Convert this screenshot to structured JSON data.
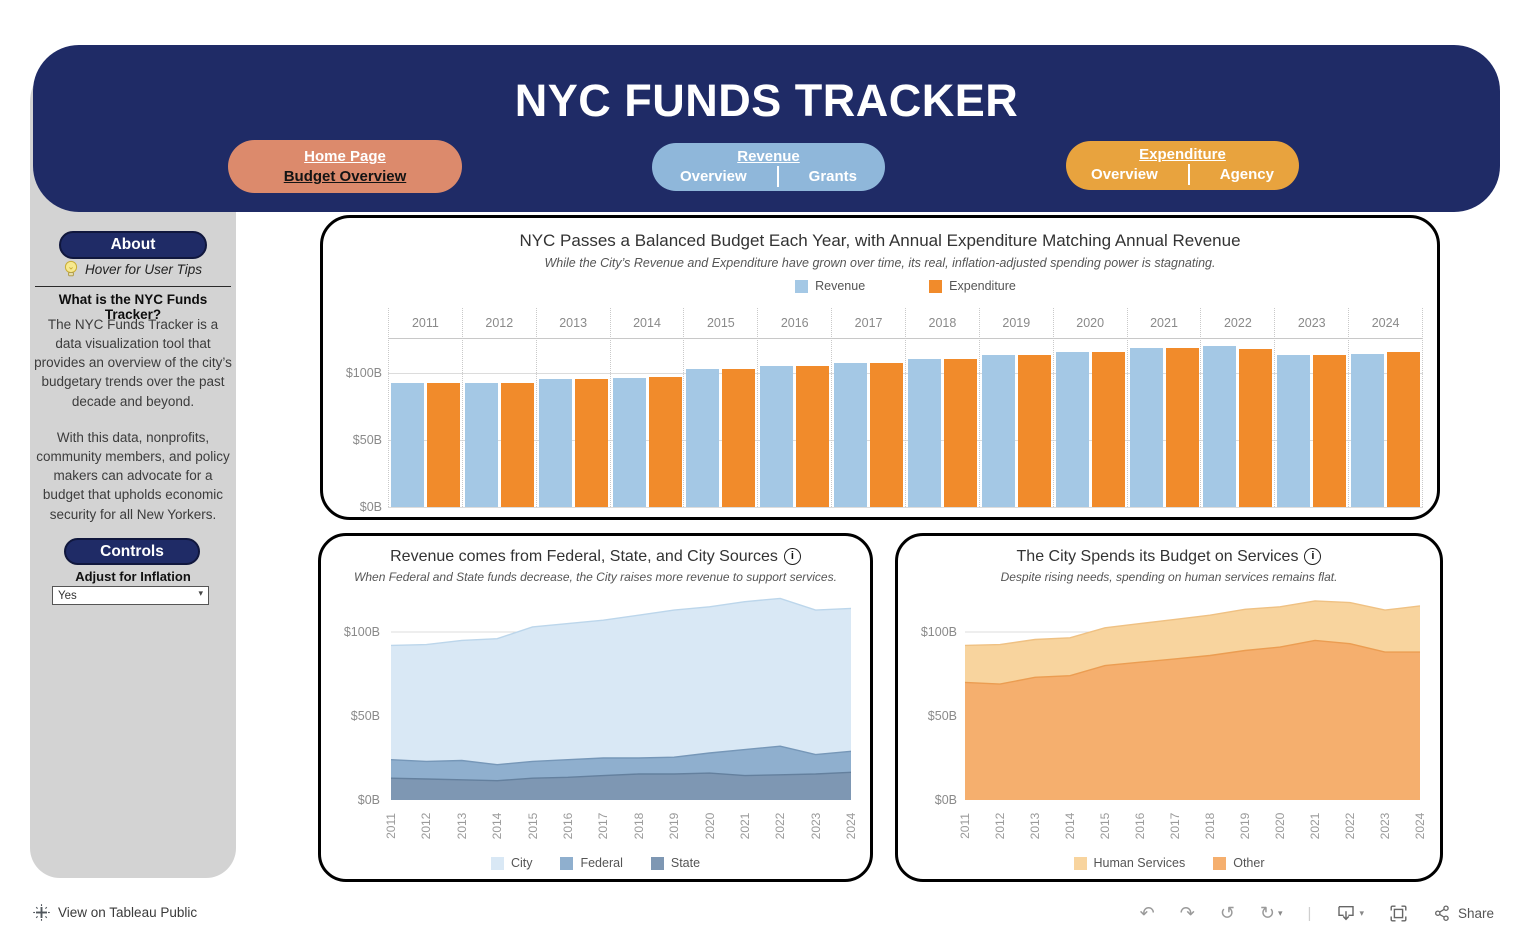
{
  "header": {
    "title": "NYC FUNDS TRACKER",
    "nav": {
      "home": {
        "line1": "Home Page",
        "line2": "Budget Overview"
      },
      "revenue": {
        "title": "Revenue",
        "left": "Overview",
        "right": "Grants"
      },
      "expenditure": {
        "title": "Expenditure",
        "left": "Overview",
        "right": "Agency"
      }
    }
  },
  "sidebar": {
    "about_label": "About",
    "tips_label": "Hover for User Tips",
    "heading": "What is the NYC Funds Tracker?",
    "para1": "The NYC Funds Tracker is a data visualization tool that provides an overview of the city’s budgetary trends over the past decade and beyond.",
    "para2": "With this data, nonprofits, community members, and policy makers can advocate for a budget that upholds economic security for all New Yorkers.",
    "controls_label": "Controls",
    "inflation_label": "Adjust for Inflation",
    "inflation_value": "Yes"
  },
  "icons": {
    "info": "i",
    "caret": "▾",
    "undo": "↶",
    "redo": "↷",
    "reset": "↺",
    "refresh": "↻",
    "separator": "|"
  },
  "footer": {
    "view_label": "View on Tableau Public",
    "share_label": "Share"
  },
  "chart_data": [
    {
      "type": "bar",
      "title": "NYC Passes a Balanced Budget Each Year, with Annual Expenditure Matching Annual Revenue",
      "subtitle": "While the City’s Revenue and Expenditure have grown over time, its real, inflation-adjusted spending power is stagnating.",
      "categories": [
        "2011",
        "2012",
        "2013",
        "2014",
        "2015",
        "2016",
        "2017",
        "2018",
        "2019",
        "2020",
        "2021",
        "2022",
        "2023",
        "2024"
      ],
      "series": [
        {
          "name": "Revenue",
          "color": "#A4C8E5",
          "values": [
            92,
            92.5,
            95,
            96,
            103,
            105,
            107,
            110,
            113,
            115,
            118,
            120,
            113,
            114
          ]
        },
        {
          "name": "Expenditure",
          "color": "#F18B2B",
          "values": [
            92,
            92.5,
            95.5,
            96.5,
            102.5,
            105,
            107.5,
            110,
            113.5,
            115,
            118.5,
            117.5,
            113,
            115.5
          ]
        }
      ],
      "ylim": [
        0,
        125
      ],
      "yticks": [
        {
          "label": "$0B",
          "value": 0
        },
        {
          "label": "$50B",
          "value": 50
        },
        {
          "label": "$100B",
          "value": 100
        }
      ],
      "legend_position": "top",
      "grid": true,
      "unit": "billions USD"
    },
    {
      "type": "area",
      "title": "Revenue comes from Federal, State, and City Sources",
      "subtitle": "When Federal and State funds decrease, the City raises more revenue to support services.",
      "x": [
        "2011",
        "2012",
        "2013",
        "2014",
        "2015",
        "2016",
        "2017",
        "2018",
        "2019",
        "2020",
        "2021",
        "2022",
        "2023",
        "2024"
      ],
      "series": [
        {
          "name": "State",
          "color": "#7E97B3",
          "edge": "#64809E",
          "values": [
            13,
            12.5,
            12,
            11.5,
            13,
            13.5,
            14.5,
            15.5,
            15.5,
            16,
            14.5,
            15,
            15.5,
            16.5
          ]
        },
        {
          "name": "Federal",
          "color": "#8FAFCE",
          "edge": "#7697B8",
          "values": [
            11,
            10.5,
            11.5,
            9.5,
            10,
            10.5,
            10.5,
            9.5,
            10,
            12,
            15.5,
            17,
            11.5,
            12.5
          ]
        },
        {
          "name": "City",
          "color": "#D9E8F5",
          "edge": "#BCD6EB",
          "values": [
            68,
            69.5,
            71.5,
            75,
            80,
            81,
            82,
            85,
            87.5,
            87,
            88,
            88,
            86,
            85
          ]
        }
      ],
      "stacked": true,
      "stack_order": "bottom-to-top",
      "legend_order": [
        "City",
        "Federal",
        "State"
      ],
      "ylim": [
        0,
        122
      ],
      "yticks": [
        {
          "label": "$0B",
          "value": 0
        },
        {
          "label": "$50B",
          "value": 50
        },
        {
          "label": "$100B",
          "value": 100
        }
      ],
      "legend_position": "bottom",
      "unit": "billions USD"
    },
    {
      "type": "area",
      "title": "The City Spends its Budget on Services",
      "subtitle": "Despite rising needs, spending on human services remains flat.",
      "x": [
        "2011",
        "2012",
        "2013",
        "2014",
        "2015",
        "2016",
        "2017",
        "2018",
        "2019",
        "2020",
        "2021",
        "2022",
        "2023",
        "2024"
      ],
      "series": [
        {
          "name": "Other",
          "color": "#F5AF6E",
          "edge": "#EB9D52",
          "values": [
            70,
            69,
            73,
            74,
            80,
            82,
            84,
            86,
            89,
            91,
            95,
            93,
            88,
            88
          ]
        },
        {
          "name": "Human Services",
          "color": "#F8D49E",
          "edge": "#EFC183",
          "values": [
            22,
            23.5,
            22.5,
            22.5,
            22.5,
            23,
            23.5,
            24,
            24.5,
            24,
            23.5,
            24.5,
            25,
            27.5
          ]
        }
      ],
      "stacked": true,
      "stack_order": "bottom-to-top",
      "legend_order": [
        "Human Services",
        "Other"
      ],
      "ylim": [
        0,
        122
      ],
      "yticks": [
        {
          "label": "$0B",
          "value": 0
        },
        {
          "label": "$50B",
          "value": 50
        },
        {
          "label": "$100B",
          "value": 100
        }
      ],
      "legend_position": "bottom",
      "unit": "billions USD"
    }
  ]
}
